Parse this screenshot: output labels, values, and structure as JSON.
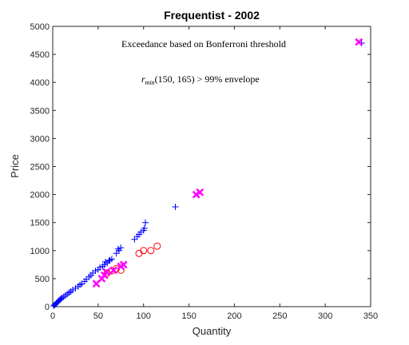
{
  "chart_data": {
    "type": "scatter",
    "title": "Frequentist - 2002",
    "xlabel": "Quantity",
    "ylabel": "Price",
    "xlim": [
      0,
      350
    ],
    "ylim": [
      0,
      5000
    ],
    "xticks": [
      0,
      50,
      100,
      150,
      200,
      250,
      300,
      350
    ],
    "yticks": [
      0,
      500,
      1000,
      1500,
      2000,
      2500,
      3000,
      3500,
      4000,
      4500,
      5000
    ],
    "grid": false,
    "annotations": {
      "line1": "Exceedance based on Bonferroni threshold",
      "line2_prefix": "r",
      "line2_sub": "min",
      "line2_rest": "(150, 165) > 99% envelope"
    },
    "series": [
      {
        "marker": "plus",
        "color": "#0000ff",
        "points": [
          [
            1,
            15
          ],
          [
            2,
            30
          ],
          [
            3,
            45
          ],
          [
            4,
            60
          ],
          [
            5,
            75
          ],
          [
            6,
            90
          ],
          [
            7,
            110
          ],
          [
            8,
            125
          ],
          [
            9,
            140
          ],
          [
            10,
            155
          ],
          [
            12,
            175
          ],
          [
            14,
            200
          ],
          [
            16,
            225
          ],
          [
            18,
            250
          ],
          [
            20,
            270
          ],
          [
            22,
            300
          ],
          [
            25,
            330
          ],
          [
            28,
            360
          ],
          [
            30,
            390
          ],
          [
            32,
            410
          ],
          [
            35,
            450
          ],
          [
            37,
            490
          ],
          [
            40,
            530
          ],
          [
            42,
            560
          ],
          [
            44,
            600
          ],
          [
            47,
            640
          ],
          [
            50,
            660
          ],
          [
            52,
            700
          ],
          [
            55,
            720
          ],
          [
            57,
            750
          ],
          [
            60,
            780
          ],
          [
            62,
            820
          ],
          [
            65,
            850
          ],
          [
            58,
            800
          ],
          [
            63,
            830
          ],
          [
            70,
            950
          ],
          [
            73,
            1000
          ],
          [
            75,
            1050
          ],
          [
            72,
            1030
          ],
          [
            90,
            1200
          ],
          [
            93,
            1250
          ],
          [
            95,
            1290
          ],
          [
            97,
            1330
          ],
          [
            100,
            1360
          ],
          [
            101,
            1400
          ],
          [
            102,
            1500
          ],
          [
            135,
            1780
          ],
          [
            340,
            4700
          ]
        ]
      },
      {
        "marker": "circle",
        "color": "#ff0000",
        "points": [
          [
            60,
            600
          ],
          [
            65,
            640
          ],
          [
            70,
            680
          ],
          [
            75,
            650
          ],
          [
            95,
            950
          ],
          [
            100,
            1000
          ],
          [
            108,
            1000
          ],
          [
            115,
            1080
          ]
        ]
      },
      {
        "marker": "x",
        "color": "#ff00ff",
        "points": [
          [
            48,
            410
          ],
          [
            54,
            500
          ],
          [
            57,
            560
          ],
          [
            59,
            620
          ],
          [
            67,
            650
          ],
          [
            75,
            720
          ],
          [
            78,
            750
          ],
          [
            158,
            2000
          ],
          [
            162,
            2040
          ],
          [
            337,
            4720
          ]
        ]
      }
    ]
  }
}
